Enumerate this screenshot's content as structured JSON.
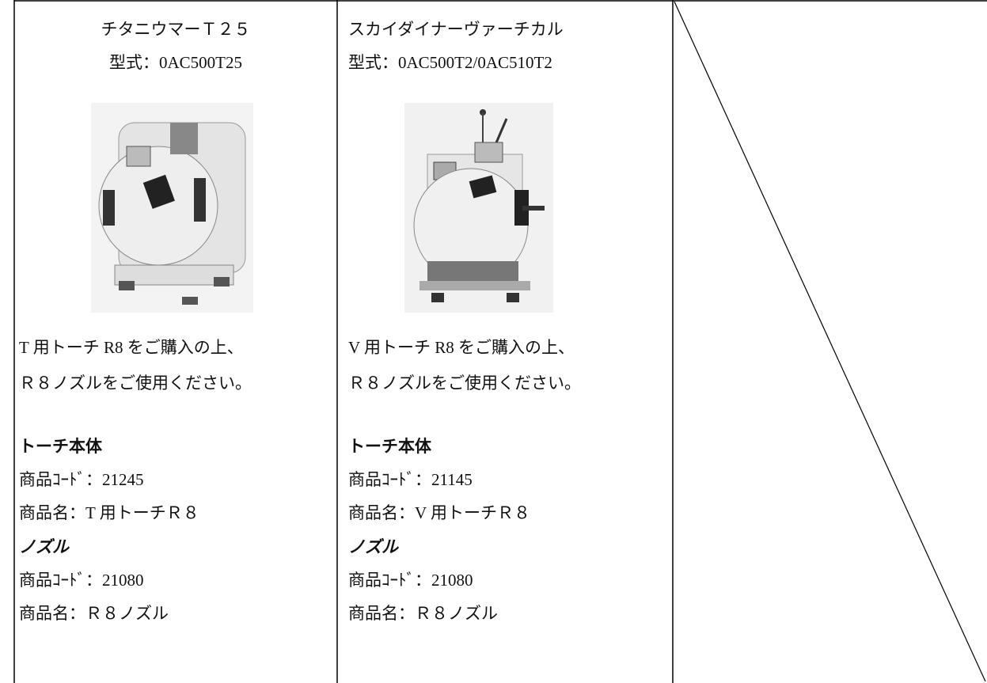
{
  "columns": [
    {
      "title": "チタニウマーＴ２５",
      "model": "型式：0AC500T25",
      "note_lines": [
        "T 用トーチ R8 をご購入の上、",
        "Ｒ８ノズルをご使用ください。"
      ],
      "torch_heading": "トーチ本体",
      "torch_code": "商品ｺｰﾄﾞ：21245",
      "torch_name": "商品名：T 用トーチＲ８",
      "nozzle_heading": "ノズル",
      "nozzle_code": "商品ｺｰﾄﾞ：21080",
      "nozzle_name": "商品名：Ｒ８ノズル"
    },
    {
      "title": "スカイダイナーヴァーチカル",
      "model": "型式：0AC500T2/0AC510T2",
      "note_lines": [
        "V 用トーチ R8 をご購入の上、",
        "Ｒ８ノズルをご使用ください。"
      ],
      "torch_heading": "トーチ本体",
      "torch_code": "商品ｺｰﾄﾞ：21145",
      "torch_name": "商品名：V 用トーチＲ８",
      "nozzle_heading": "ノズル",
      "nozzle_code": "商品ｺｰﾄﾞ：21080",
      "nozzle_name": "商品名：Ｒ８ノズル"
    }
  ]
}
